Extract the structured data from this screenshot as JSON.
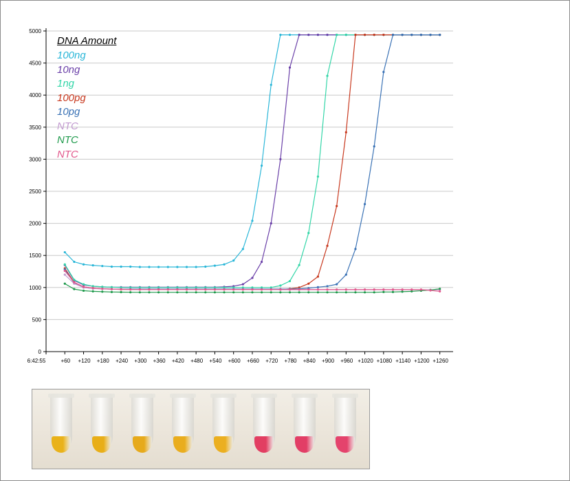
{
  "chart_data": {
    "type": "line",
    "x": [
      "+60",
      "+90",
      "+120",
      "+150",
      "+180",
      "+210",
      "+240",
      "+270",
      "+300",
      "+330",
      "+360",
      "+390",
      "+420",
      "+450",
      "+480",
      "+510",
      "+540",
      "+570",
      "+600",
      "+630",
      "+660",
      "+690",
      "+720",
      "+750",
      "+780",
      "+810",
      "+840",
      "+870",
      "+900",
      "+930",
      "+960",
      "+990",
      "+1020",
      "+1050",
      "+1080",
      "+1110",
      "+1140",
      "+1170",
      "+1200",
      "+1230",
      "+1260"
    ],
    "x_tick_labels": [
      "6:42:55",
      "+60",
      "+120",
      "+180",
      "+240",
      "+300",
      "+360",
      "+420",
      "+480",
      "+540",
      "+600",
      "+660",
      "+720",
      "+780",
      "+840",
      "+900",
      "+960",
      "+1020",
      "+1080",
      "+1140",
      "+1200",
      "+1260"
    ],
    "y_tick_labels": [
      "0",
      "500",
      "1000",
      "1500",
      "2000",
      "2500",
      "3000",
      "3500",
      "4000",
      "4500",
      "5000"
    ],
    "ylim": [
      0,
      5000
    ],
    "grid": "horizontal",
    "legend_title": "DNA Amount",
    "legend_position": "top-left",
    "series": [
      {
        "name": "100ng",
        "color": "#29b6d8",
        "values": [
          1550,
          1400,
          1360,
          1345,
          1335,
          1325,
          1325,
          1325,
          1320,
          1320,
          1320,
          1320,
          1320,
          1320,
          1320,
          1325,
          1340,
          1360,
          1420,
          1600,
          2040,
          2900,
          4160,
          4940,
          4940,
          4940,
          4940,
          4940,
          4940,
          4940,
          4940,
          4940,
          4940,
          4940,
          4940,
          4940,
          4940,
          4940,
          4940,
          4940,
          4940
        ]
      },
      {
        "name": "10ng",
        "color": "#6a3fa8",
        "values": [
          1350,
          1110,
          1040,
          1020,
          1010,
          1005,
          1005,
          1005,
          1005,
          1005,
          1005,
          1005,
          1005,
          1005,
          1005,
          1005,
          1005,
          1010,
          1020,
          1050,
          1150,
          1400,
          2000,
          3000,
          4430,
          4940,
          4940,
          4940,
          4940,
          4940,
          4940,
          4940,
          4940,
          4940,
          4940,
          4940,
          4940,
          4940,
          4940,
          4940,
          4940
        ]
      },
      {
        "name": "1ng",
        "color": "#33d6a8",
        "values": [
          1360,
          1120,
          1050,
          1020,
          1010,
          1005,
          1000,
          1000,
          1000,
          1000,
          1000,
          1000,
          1000,
          1000,
          1000,
          1000,
          1000,
          1000,
          1000,
          1000,
          1000,
          1000,
          1000,
          1030,
          1100,
          1350,
          1850,
          2730,
          4300,
          4940,
          4940,
          4940,
          4940,
          4940,
          4940,
          4940,
          4940,
          4940,
          4940,
          4940,
          4940
        ]
      },
      {
        "name": "100pg",
        "color": "#c8381e",
        "values": [
          1300,
          1080,
          1010,
          990,
          980,
          975,
          970,
          970,
          970,
          970,
          970,
          970,
          970,
          970,
          970,
          970,
          970,
          970,
          970,
          970,
          970,
          970,
          970,
          970,
          980,
          1000,
          1060,
          1170,
          1650,
          2270,
          3420,
          4940,
          4940,
          4940,
          4940,
          4940,
          4940,
          4940,
          4940,
          4940,
          4940
        ]
      },
      {
        "name": "10pg",
        "color": "#3a72b5",
        "values": [
          1280,
          1070,
          1000,
          985,
          980,
          975,
          975,
          975,
          975,
          975,
          975,
          975,
          975,
          975,
          975,
          975,
          975,
          975,
          975,
          975,
          975,
          975,
          975,
          975,
          975,
          980,
          990,
          1005,
          1020,
          1050,
          1200,
          1600,
          2300,
          3200,
          4360,
          4940,
          4940,
          4940,
          4940,
          4940,
          4940
        ]
      },
      {
        "name": "NTC",
        "color": "#c29ad0",
        "values": [
          1200,
          1060,
          1000,
          985,
          978,
          975,
          972,
          970,
          970,
          970,
          970,
          970,
          970,
          970,
          970,
          970,
          970,
          970,
          970,
          970,
          970,
          970,
          970,
          965,
          965,
          965,
          965,
          965,
          965,
          965,
          965,
          965,
          965,
          965,
          965,
          965,
          965,
          965,
          965,
          965,
          965
        ]
      },
      {
        "name": "NTC",
        "color": "#1f9a4c",
        "values": [
          1060,
          975,
          950,
          940,
          935,
          930,
          928,
          926,
          925,
          925,
          925,
          925,
          925,
          925,
          925,
          925,
          925,
          925,
          925,
          925,
          925,
          925,
          925,
          925,
          925,
          925,
          925,
          925,
          925,
          925,
          925,
          925,
          925,
          925,
          930,
          930,
          935,
          940,
          950,
          960,
          980
        ]
      },
      {
        "name": "NTC",
        "color": "#e2588c",
        "values": [
          1260,
          1080,
          1010,
          990,
          980,
          975,
          972,
          970,
          968,
          968,
          968,
          968,
          968,
          968,
          968,
          968,
          968,
          968,
          968,
          968,
          968,
          968,
          968,
          968,
          968,
          968,
          968,
          968,
          968,
          968,
          968,
          968,
          968,
          968,
          968,
          968,
          968,
          968,
          968,
          955,
          940
        ]
      }
    ]
  },
  "photo": {
    "tube_colors": [
      "#e9b21a",
      "#e8ae18",
      "#e6aa1c",
      "#e9ad1e",
      "#ebaf20",
      "#e23e62",
      "#e23e66",
      "#e4436c"
    ]
  }
}
